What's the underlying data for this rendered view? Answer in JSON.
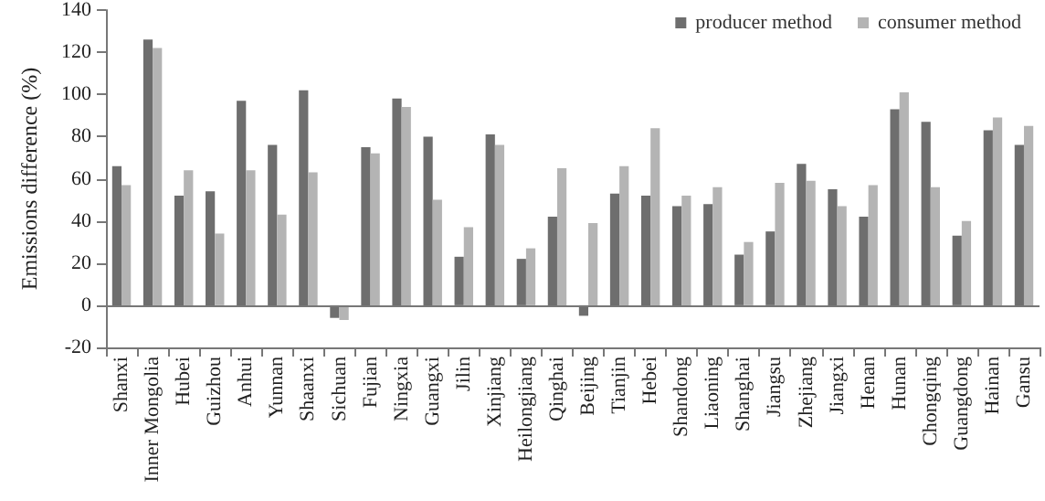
{
  "chart_data": {
    "type": "bar",
    "ylabel": "Emissions difference (%)",
    "categories": [
      "Shanxi",
      "Inner Mongolia",
      "Hubei",
      "Guizhou",
      "Anhui",
      "Yunnan",
      "Shaanxi",
      "Sichuan",
      "Fujian",
      "Ningxia",
      "Guangxi",
      "Jilin",
      "Xinjiang",
      "Heilongjiang",
      "Qinghai",
      "Beijing",
      "Tianjin",
      "Hebei",
      "Shandong",
      "Liaoning",
      "Shanghai",
      "Jiangsu",
      "Zhejiang",
      "Jiangxi",
      "Henan",
      "Hunan",
      "Chongqing",
      "Guangdong",
      "Hainan",
      "Gansu"
    ],
    "series": [
      {
        "name": "producer method",
        "color": "#6e6e6e",
        "values": [
          66,
          126,
          52,
          54,
          97,
          76,
          102,
          -6,
          75,
          98,
          80,
          23,
          81,
          22,
          42,
          -5,
          53,
          52,
          47,
          48,
          24,
          35,
          67,
          55,
          42,
          93,
          87,
          33,
          83,
          76
        ]
      },
      {
        "name": "consumer method",
        "color": "#b4b4b4",
        "values": [
          57,
          122,
          64,
          34,
          64,
          43,
          63,
          -7,
          72,
          94,
          50,
          37,
          76,
          27,
          65,
          39,
          66,
          84,
          52,
          56,
          30,
          58,
          59,
          47,
          57,
          101,
          56,
          40,
          89,
          85
        ]
      }
    ],
    "ylim": [
      -20,
      140
    ],
    "yticks": [
      -20,
      0,
      20,
      40,
      60,
      80,
      100,
      120,
      140
    ],
    "grid": false,
    "ref_lines": [
      {
        "axis": "y",
        "value": 0,
        "color": "#777777"
      }
    ],
    "legend": "top right"
  }
}
